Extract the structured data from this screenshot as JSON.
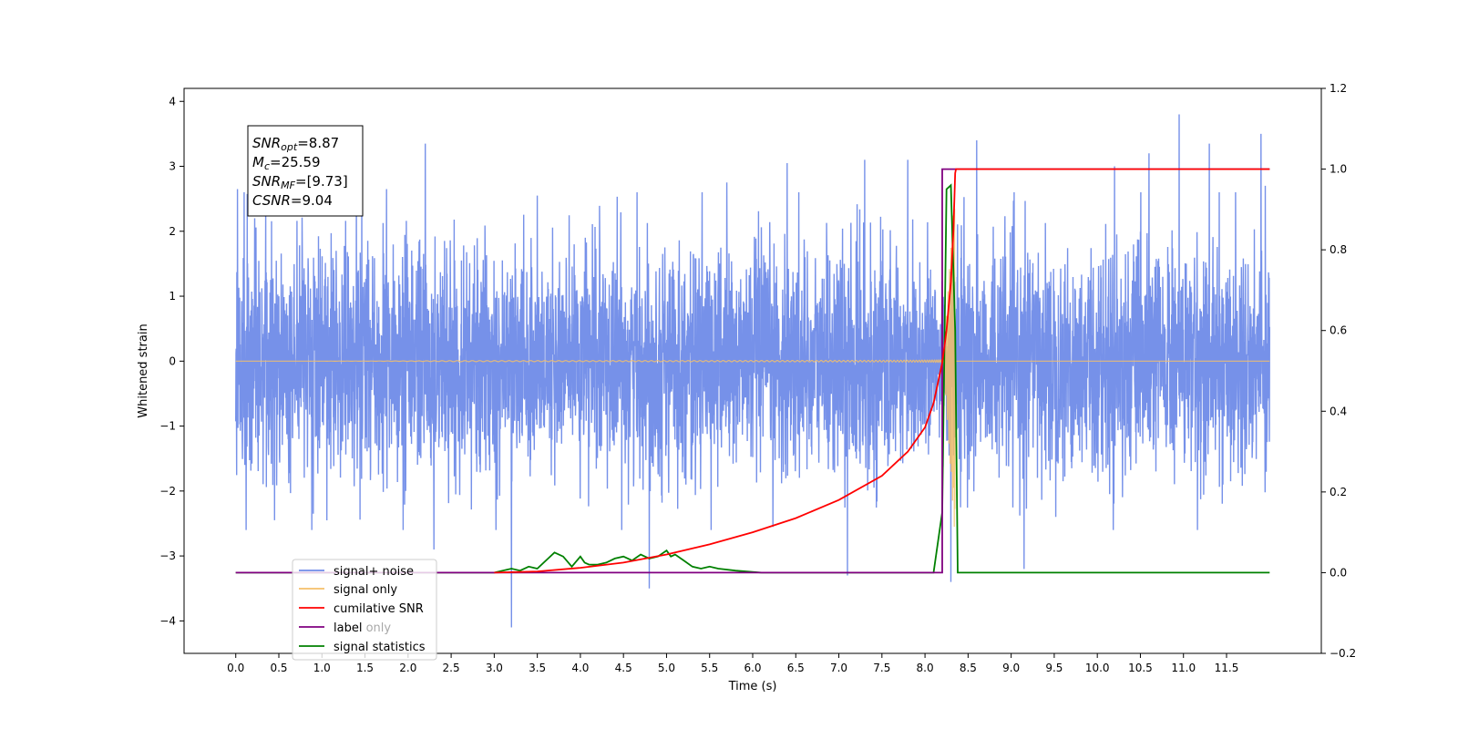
{
  "chart_data": {
    "type": "line",
    "title": "",
    "xlabel": "Time (s)",
    "ylabel": "Whitened strain",
    "xlim": [
      -0.6,
      12.6
    ],
    "ylim_left": [
      -4.5,
      4.2
    ],
    "ylim_right": [
      -0.2,
      1.2
    ],
    "x_ticks": [
      0.0,
      0.5,
      1.0,
      1.5,
      2.0,
      2.5,
      3.0,
      3.5,
      4.0,
      4.5,
      5.0,
      5.5,
      6.0,
      6.5,
      7.0,
      7.5,
      8.0,
      8.5,
      9.0,
      9.5,
      10.0,
      10.5,
      11.0,
      11.5
    ],
    "x_tick_labels": [
      "0.0",
      "0.5",
      "1.0",
      "1.5",
      "2.0",
      "2.5",
      "3.0",
      "3.5",
      "4.0",
      "4.5",
      "5.0",
      "5.5",
      "6.0",
      "6.5",
      "7.0",
      "7.5",
      "8.0",
      "8.5",
      "9.0",
      "9.5",
      "10.0",
      "10.5",
      "11.0",
      "11.5"
    ],
    "y_left_ticks": [
      4,
      3,
      2,
      1,
      0,
      -1,
      -2,
      -3,
      -4
    ],
    "y_left_tick_labels": [
      "4",
      "3",
      "2",
      "1",
      "0",
      "−1",
      "−2",
      "−3",
      "−4"
    ],
    "y_right_ticks": [
      1.2,
      1.0,
      0.8,
      0.6,
      0.4,
      0.2,
      0.0,
      -0.2
    ],
    "y_right_tick_labels": [
      "1.2",
      "1.0",
      "0.8",
      "0.6",
      "0.4",
      "0.2",
      "0.0",
      "−0.2"
    ],
    "grid": false,
    "legend_placement": "lower-left",
    "series": [
      {
        "name": "signal+ noise",
        "axis": "left",
        "color": "#6f8be8",
        "x_range": [
          0.0,
          12.0
        ],
        "noise_std": 0.85,
        "peaks": [
          {
            "x": 0.02,
            "y": 2.65
          },
          {
            "x": 0.12,
            "y": -2.6
          },
          {
            "x": 0.22,
            "y": 2.2
          },
          {
            "x": 0.45,
            "y": -2.45
          },
          {
            "x": 1.4,
            "y": 2.6
          },
          {
            "x": 1.75,
            "y": 2.65
          },
          {
            "x": 2.2,
            "y": 3.35
          },
          {
            "x": 2.3,
            "y": -2.9
          },
          {
            "x": 3.2,
            "y": -4.1
          },
          {
            "x": 3.5,
            "y": 2.55
          },
          {
            "x": 4.8,
            "y": -3.5
          },
          {
            "x": 5.7,
            "y": 2.75
          },
          {
            "x": 6.4,
            "y": 3.05
          },
          {
            "x": 7.1,
            "y": -3.3
          },
          {
            "x": 7.3,
            "y": 3.1
          },
          {
            "x": 7.8,
            "y": 3.1
          },
          {
            "x": 8.3,
            "y": -3.4
          },
          {
            "x": 8.6,
            "y": 3.4
          },
          {
            "x": 9.15,
            "y": -3.2
          },
          {
            "x": 10.2,
            "y": 3.0
          },
          {
            "x": 10.6,
            "y": 3.2
          },
          {
            "x": 10.95,
            "y": 3.8
          },
          {
            "x": 11.3,
            "y": 3.35
          },
          {
            "x": 11.9,
            "y": 3.5
          },
          {
            "x": 11.95,
            "y": 2.7
          }
        ]
      },
      {
        "name": "signal only",
        "axis": "left",
        "color": "#f4bf6a",
        "x_range": [
          0.0,
          12.0
        ],
        "chirp_merger_time": 8.35,
        "chirp_peak_amplitude": 2.6
      },
      {
        "name": "cumilative SNR",
        "axis": "right",
        "color": "#ff0000",
        "x": [
          3.0,
          3.5,
          4.0,
          4.5,
          5.0,
          5.5,
          6.0,
          6.5,
          7.0,
          7.5,
          7.8,
          8.0,
          8.1,
          8.2,
          8.25,
          8.3,
          8.33,
          8.35,
          8.36,
          12.0
        ],
        "y": [
          0.0,
          0.003,
          0.012,
          0.025,
          0.045,
          0.07,
          0.1,
          0.135,
          0.18,
          0.24,
          0.3,
          0.36,
          0.42,
          0.52,
          0.6,
          0.72,
          0.85,
          0.99,
          1.0,
          1.0
        ]
      },
      {
        "name": "label",
        "axis": "right",
        "color": "#800080",
        "x": [
          0.0,
          8.2,
          8.2,
          8.3,
          8.3,
          12.0
        ],
        "y": [
          0.0,
          0.0,
          1.0,
          1.0,
          1.0,
          1.0
        ]
      },
      {
        "name": "signal statistics",
        "axis": "right",
        "color": "#008000",
        "x": [
          0.0,
          3.0,
          3.2,
          3.3,
          3.4,
          3.5,
          3.6,
          3.7,
          3.8,
          3.9,
          4.0,
          4.05,
          4.1,
          4.2,
          4.3,
          4.4,
          4.5,
          4.6,
          4.7,
          4.8,
          4.9,
          5.0,
          5.05,
          5.1,
          5.2,
          5.3,
          5.4,
          5.5,
          5.6,
          5.8,
          6.1,
          7.0,
          8.1,
          8.2,
          8.25,
          8.3,
          8.35,
          8.38,
          12.0
        ],
        "y": [
          0.0,
          0.0,
          0.01,
          0.005,
          0.015,
          0.01,
          0.03,
          0.05,
          0.04,
          0.015,
          0.04,
          0.025,
          0.02,
          0.02,
          0.025,
          0.035,
          0.04,
          0.03,
          0.045,
          0.035,
          0.04,
          0.055,
          0.04,
          0.045,
          0.03,
          0.015,
          0.01,
          0.015,
          0.01,
          0.005,
          0.0,
          0.0,
          0.0,
          0.15,
          0.95,
          0.96,
          0.6,
          0.0,
          0.0
        ]
      },
      {
        "name": "label only",
        "axis": "right",
        "color": "#800080",
        "legend_only": true
      }
    ],
    "legend_entries": [
      {
        "label": "signal+ noise",
        "color": "#6f8be8"
      },
      {
        "label": "signal only",
        "color": "#f4bf6a"
      },
      {
        "label": "cumilative SNR",
        "color": "#ff0000"
      },
      {
        "label": "label",
        "color": "#800080"
      },
      {
        "label": "label only",
        "color": "#800080",
        "occluded": true
      },
      {
        "label": "signal statistics",
        "color": "#008000"
      }
    ],
    "annotations": [
      {
        "base": "SNR",
        "sub": "opt",
        "value": "=8.87"
      },
      {
        "base": "M",
        "sub": "c",
        "value": "=25.59"
      },
      {
        "base": "SNR",
        "sub": "MF",
        "value": "=[9.73]"
      },
      {
        "base": "CSNR",
        "sub": "",
        "value": "=9.04"
      }
    ]
  }
}
